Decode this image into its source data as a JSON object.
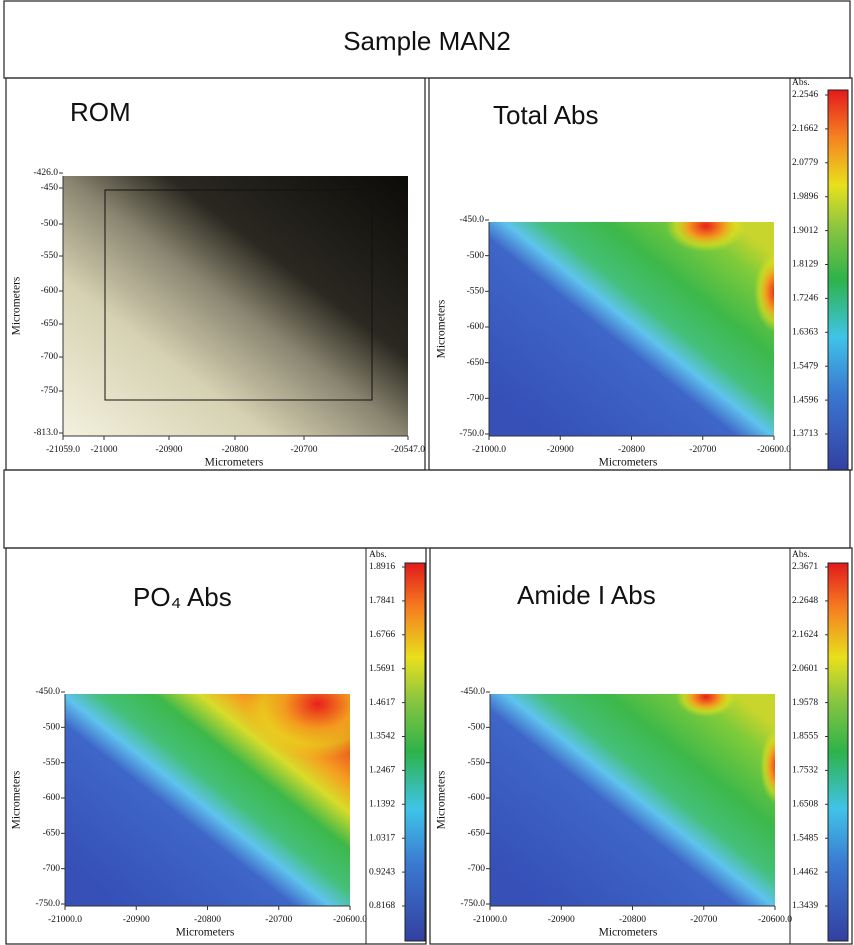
{
  "title": "Sample MAN2",
  "panels": [
    {
      "title": "ROM",
      "x_label": "Micrometers",
      "y_label": "Micrometers",
      "xticks": [
        "-21059.0",
        "-21000",
        "-20900",
        "-20800",
        "-20700",
        "-20547.0"
      ],
      "yticks": [
        "-426.0",
        "-450",
        "-500",
        "-550",
        "-600",
        "-650",
        "-700",
        "-750",
        "-813.0"
      ]
    },
    {
      "title": "Total Abs",
      "x_label": "Micrometers",
      "y_label": "Micrometers",
      "xticks": [
        "-21000.0",
        "-20900",
        "-20800",
        "-20700",
        "-20600.0"
      ],
      "yticks": [
        "-450.0",
        "-500",
        "-550",
        "-600",
        "-650",
        "-700",
        "-750.0"
      ],
      "colorbar": {
        "label": "Abs.",
        "ticks": [
          "2.2546",
          "2.1662",
          "2.0779",
          "1.9896",
          "1.9012",
          "1.8129",
          "1.7246",
          "1.6363",
          "1.5479",
          "1.4596",
          "1.3713"
        ]
      }
    },
    {
      "title": "PO₄  Abs",
      "x_label": "Micrometers",
      "y_label": "Micrometers",
      "xticks": [
        "-21000.0",
        "-20900",
        "-20800",
        "-20700",
        "-20600.0"
      ],
      "yticks": [
        "-450.0",
        "-500",
        "-550",
        "-600",
        "-650",
        "-700",
        "-750.0"
      ],
      "colorbar": {
        "label": "Abs.",
        "ticks": [
          "1.8916",
          "1.7841",
          "1.6766",
          "1.5691",
          "1.4617",
          "1.3542",
          "1.2467",
          "1.1392",
          "1.0317",
          "0.9243",
          "0.8168"
        ]
      }
    },
    {
      "title": "Amide I Abs",
      "x_label": "Micrometers",
      "y_label": "Micrometers",
      "xticks": [
        "-21000.0",
        "-20900",
        "-20800",
        "-20700",
        "-20600.0"
      ],
      "yticks": [
        "-450.0",
        "-500",
        "-550",
        "-600",
        "-650",
        "-700",
        "-750.0"
      ],
      "colorbar": {
        "label": "Abs.",
        "ticks": [
          "2.3671",
          "2.2648",
          "2.1624",
          "2.0601",
          "1.9578",
          "1.8555",
          "1.7532",
          "1.6508",
          "1.5485",
          "1.4462",
          "1.3439"
        ]
      }
    }
  ]
}
